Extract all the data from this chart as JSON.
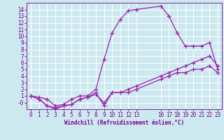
{
  "bg_color": "#cce9f0",
  "line_color": "#9b1fa8",
  "grid_color": "#ffffff",
  "text_color": "#7b008b",
  "xlabel": "Windchill (Refroidissement éolien,°C)",
  "xlim": [
    -0.5,
    23.5
  ],
  "ylim": [
    -1.0,
    15.0
  ],
  "xticks": [
    0,
    1,
    2,
    3,
    4,
    5,
    6,
    7,
    8,
    9,
    10,
    11,
    12,
    13,
    16,
    17,
    18,
    19,
    20,
    21,
    22,
    23
  ],
  "yticks": [
    0,
    1,
    2,
    3,
    4,
    5,
    6,
    7,
    8,
    9,
    10,
    11,
    12,
    13,
    14
  ],
  "ytick_labels": [
    "-0",
    "1",
    "2",
    "3",
    "4",
    "5",
    "6",
    "7",
    "8",
    "9",
    "10",
    "11",
    "12",
    "13",
    "14"
  ],
  "series1_x": [
    0,
    1,
    2,
    3,
    4,
    5,
    6,
    7,
    8,
    9,
    10,
    11,
    12,
    13,
    16,
    17,
    18,
    19,
    20,
    21,
    22,
    23
  ],
  "series1_y": [
    1,
    0.8,
    0.5,
    -0.5,
    -0.3,
    0.5,
    1,
    1.0,
    2.0,
    6.5,
    10.5,
    12.5,
    13.8,
    14.0,
    14.5,
    13.0,
    10.5,
    8.5,
    8.5,
    8.5,
    9.0,
    5.0
  ],
  "series2_x": [
    0,
    1,
    2,
    3,
    4,
    5,
    6,
    7,
    8,
    9,
    10,
    11,
    12,
    13,
    16,
    17,
    18,
    19,
    20,
    21,
    22,
    23
  ],
  "series2_y": [
    1,
    0.5,
    -0.5,
    -0.8,
    -0.5,
    -0.3,
    0.5,
    0.8,
    1.5,
    -0.5,
    1.5,
    1.5,
    2.0,
    2.5,
    4.0,
    4.5,
    5.0,
    5.5,
    6.0,
    6.5,
    7.0,
    5.5
  ],
  "series3_x": [
    0,
    1,
    2,
    3,
    4,
    5,
    6,
    7,
    8,
    9,
    10,
    11,
    12,
    13,
    16,
    17,
    18,
    19,
    20,
    21,
    22,
    23
  ],
  "series3_y": [
    1,
    0.5,
    -0.5,
    -1.0,
    -0.5,
    -0.3,
    0.5,
    0.8,
    1.2,
    0.0,
    1.5,
    1.5,
    1.5,
    2.0,
    3.5,
    4.0,
    4.5,
    4.5,
    5.0,
    5.0,
    5.5,
    4.5
  ],
  "marker": "+",
  "markersize": 4,
  "linewidth": 0.9,
  "tick_fontsize": 5.5,
  "xlabel_fontsize": 5.5
}
